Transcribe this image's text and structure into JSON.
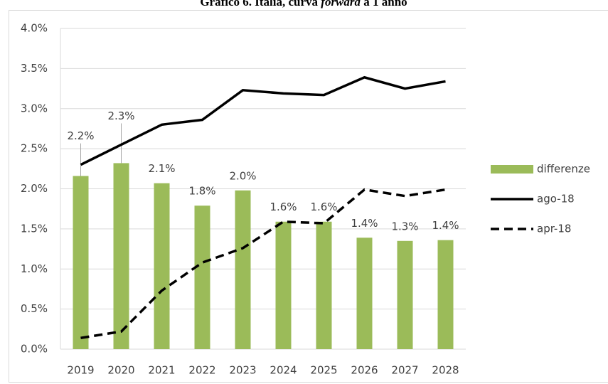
{
  "chart_data": {
    "type": "bar_line",
    "title_parts": [
      "Grafico 6. Italia, curva ",
      "forward",
      " a 1 anno"
    ],
    "categories": [
      "2019",
      "2020",
      "2021",
      "2022",
      "2023",
      "2024",
      "2025",
      "2026",
      "2027",
      "2028"
    ],
    "series": [
      {
        "name": "differenze",
        "type": "bar",
        "color": "#9bbb59",
        "values": [
          2.16,
          2.32,
          2.07,
          1.79,
          1.98,
          1.59,
          1.59,
          1.39,
          1.35,
          1.36
        ],
        "value_labels": [
          "2.2%",
          "2.3%",
          "2.1%",
          "1.8%",
          "2.0%",
          "1.6%",
          "1.6%",
          "1.4%",
          "1.3%",
          "1.4%"
        ]
      },
      {
        "name": "ago-18",
        "type": "line",
        "color": "#000000",
        "dash": false,
        "values": [
          2.3,
          2.55,
          2.8,
          2.86,
          3.23,
          3.19,
          3.17,
          3.39,
          3.25,
          3.34
        ]
      },
      {
        "name": "apr-18",
        "type": "line",
        "color": "#000000",
        "dash": true,
        "values": [
          0.14,
          0.22,
          0.73,
          1.08,
          1.26,
          1.59,
          1.57,
          1.99,
          1.91,
          1.99
        ]
      }
    ],
    "ylim": [
      0,
      4
    ],
    "yticks": [
      {
        "value": 0,
        "label": "0.0%"
      },
      {
        "value": 0.5,
        "label": "0.5%"
      },
      {
        "value": 1,
        "label": "1.0%"
      },
      {
        "value": 1.5,
        "label": "1.5%"
      },
      {
        "value": 2,
        "label": "2.0%"
      },
      {
        "value": 2.5,
        "label": "2.5%"
      },
      {
        "value": 3,
        "label": "3.0%"
      },
      {
        "value": 3.5,
        "label": "3.5%"
      },
      {
        "value": 4,
        "label": "4.0%"
      }
    ],
    "grid": true,
    "legend": "right"
  }
}
